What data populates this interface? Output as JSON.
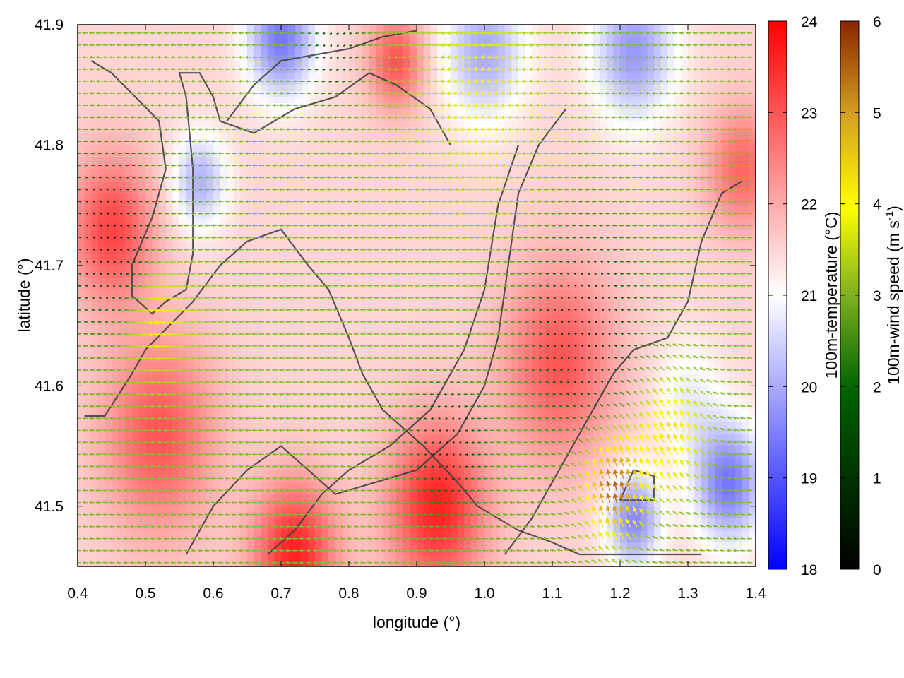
{
  "chart_data": {
    "type": "heatmap",
    "title": "",
    "xlabel": "longitude (°)",
    "ylabel": "latitude (°)",
    "xlim": [
      0.4,
      1.4
    ],
    "ylim": [
      41.45,
      41.9
    ],
    "xticks": [
      0.4,
      0.5,
      0.6,
      0.7,
      0.8,
      0.9,
      1.0,
      1.1,
      1.2,
      1.3,
      1.4
    ],
    "xtick_labels": [
      "0.4",
      "0.5",
      "0.6",
      "0.7",
      "0.8",
      "0.9",
      "1.0",
      "1.1",
      "1.2",
      "1.3",
      "1.4"
    ],
    "yticks": [
      41.5,
      41.6,
      41.7,
      41.8,
      41.9
    ],
    "ytick_labels": [
      "41.5",
      "41.6",
      "41.7",
      "41.8",
      "41.9"
    ],
    "grid": false,
    "temperature_colorbar": {
      "label": "100m-temperature (°C)",
      "range": [
        18,
        24
      ],
      "ticks": [
        18,
        19,
        20,
        21,
        22,
        23,
        24
      ],
      "tick_labels": [
        "18",
        "19",
        "20",
        "21",
        "22",
        "23",
        "24"
      ],
      "colors": [
        "#0000ff",
        "#ffffff",
        "#ff0000"
      ]
    },
    "wind_colorbar": {
      "label": "100m-wind speed (m s-1)",
      "label_main": "100m-wind speed (m s",
      "label_sup": "-1",
      "label_end": ")",
      "range": [
        0,
        6
      ],
      "ticks": [
        0,
        1,
        2,
        3,
        4,
        5,
        6
      ],
      "tick_labels": [
        "0",
        "1",
        "2",
        "3",
        "4",
        "5",
        "6"
      ],
      "colors": [
        "#000000",
        "#006400",
        "#9acd32",
        "#ffff00",
        "#daa520",
        "#8b2500"
      ]
    },
    "temperature_field": {
      "background": 21.5,
      "features": [
        {
          "lon": 0.45,
          "lat": 41.73,
          "value": 23.2,
          "spread": 0.06
        },
        {
          "lon": 0.52,
          "lat": 41.56,
          "value": 23.0,
          "spread": 0.08
        },
        {
          "lon": 0.72,
          "lat": 41.46,
          "value": 23.6,
          "spread": 0.06
        },
        {
          "lon": 0.93,
          "lat": 41.5,
          "value": 23.6,
          "spread": 0.07
        },
        {
          "lon": 1.11,
          "lat": 41.62,
          "value": 23.0,
          "spread": 0.08
        },
        {
          "lon": 0.87,
          "lat": 41.87,
          "value": 23.0,
          "spread": 0.04
        },
        {
          "lon": 1.38,
          "lat": 41.78,
          "value": 22.8,
          "spread": 0.05
        },
        {
          "lon": 0.58,
          "lat": 41.77,
          "value": 20.1,
          "spread": 0.04
        },
        {
          "lon": 0.7,
          "lat": 41.89,
          "value": 19.4,
          "spread": 0.05
        },
        {
          "lon": 1.0,
          "lat": 41.88,
          "value": 20.0,
          "spread": 0.06
        },
        {
          "lon": 1.22,
          "lat": 41.88,
          "value": 19.8,
          "spread": 0.06
        },
        {
          "lon": 1.36,
          "lat": 41.52,
          "value": 19.4,
          "spread": 0.05
        },
        {
          "lon": 1.22,
          "lat": 41.49,
          "value": 19.6,
          "spread": 0.04
        },
        {
          "lon": 1.3,
          "lat": 41.59,
          "value": 20.8,
          "spread": 0.05
        }
      ]
    },
    "wind_field": {
      "background": {
        "u": -2.2,
        "v": 0.1
      },
      "features": [
        {
          "lon": 0.45,
          "lat": 41.72,
          "u": 2.2,
          "v": 0.0,
          "spread": 0.07
        },
        {
          "lon": 0.52,
          "lat": 41.66,
          "u": -1.5,
          "v": -0.5,
          "spread": 0.05
        },
        {
          "lon": 1.0,
          "lat": 41.84,
          "u": -1.2,
          "v": 0.0,
          "spread": 0.09
        },
        {
          "lon": 1.15,
          "lat": 41.65,
          "u": 2.0,
          "v": 0.0,
          "spread": 0.08
        },
        {
          "lon": 1.19,
          "lat": 41.51,
          "u": 0.8,
          "v": 5.0,
          "spread": 0.05
        },
        {
          "lon": 1.28,
          "lat": 41.56,
          "u": 0.5,
          "v": 3.5,
          "spread": 0.06
        },
        {
          "lon": 0.95,
          "lat": 41.55,
          "u": 1.8,
          "v": -0.3,
          "spread": 0.05
        },
        {
          "lon": 0.78,
          "lat": 41.88,
          "u": 1.5,
          "v": -0.5,
          "spread": 0.04
        }
      ]
    },
    "contours": [
      [
        [
          0.42,
          41.87
        ],
        [
          0.45,
          41.86
        ],
        [
          0.52,
          41.82
        ],
        [
          0.53,
          41.78
        ],
        [
          0.51,
          41.74
        ],
        [
          0.48,
          41.7
        ],
        [
          0.48,
          41.675
        ],
        [
          0.51,
          41.66
        ],
        [
          0.53,
          41.67
        ],
        [
          0.56,
          41.68
        ],
        [
          0.57,
          41.71
        ],
        [
          0.57,
          41.78
        ],
        [
          0.56,
          41.84
        ],
        [
          0.55,
          41.86
        ],
        [
          0.58,
          41.86
        ],
        [
          0.6,
          41.84
        ],
        [
          0.61,
          41.82
        ],
        [
          0.66,
          41.81
        ],
        [
          0.72,
          41.83
        ],
        [
          0.78,
          41.84
        ],
        [
          0.83,
          41.86
        ],
        [
          0.87,
          41.85
        ],
        [
          0.92,
          41.83
        ],
        [
          0.95,
          41.8
        ]
      ],
      [
        [
          0.41,
          41.575
        ],
        [
          0.44,
          41.575
        ],
        [
          0.48,
          41.61
        ],
        [
          0.5,
          41.63
        ],
        [
          0.57,
          41.67
        ],
        [
          0.61,
          41.7
        ],
        [
          0.65,
          41.72
        ],
        [
          0.7,
          41.73
        ],
        [
          0.74,
          41.7
        ],
        [
          0.77,
          41.68
        ],
        [
          0.8,
          41.64
        ],
        [
          0.82,
          41.61
        ],
        [
          0.85,
          41.58
        ],
        [
          0.91,
          41.55
        ],
        [
          0.96,
          41.52
        ],
        [
          0.99,
          41.5
        ],
        [
          1.05,
          41.48
        ],
        [
          1.1,
          41.47
        ],
        [
          1.14,
          41.46
        ],
        [
          1.2,
          41.46
        ],
        [
          1.26,
          41.46
        ],
        [
          1.32,
          41.46
        ]
      ],
      [
        [
          0.56,
          41.46
        ],
        [
          0.6,
          41.5
        ],
        [
          0.65,
          41.53
        ],
        [
          0.7,
          41.55
        ],
        [
          0.74,
          41.53
        ],
        [
          0.78,
          41.51
        ],
        [
          0.84,
          41.52
        ],
        [
          0.9,
          41.53
        ],
        [
          0.96,
          41.56
        ],
        [
          1.0,
          41.6
        ],
        [
          1.02,
          41.64
        ],
        [
          1.03,
          41.68
        ],
        [
          1.04,
          41.72
        ],
        [
          1.05,
          41.76
        ],
        [
          1.08,
          41.8
        ],
        [
          1.12,
          41.83
        ]
      ],
      [
        [
          0.68,
          41.46
        ],
        [
          0.72,
          41.48
        ],
        [
          0.76,
          41.51
        ],
        [
          0.8,
          41.53
        ],
        [
          0.86,
          41.55
        ],
        [
          0.92,
          41.58
        ],
        [
          0.97,
          41.63
        ],
        [
          1.0,
          41.68
        ],
        [
          1.02,
          41.75
        ],
        [
          1.05,
          41.8
        ]
      ],
      [
        [
          1.03,
          41.46
        ],
        [
          1.07,
          41.49
        ],
        [
          1.12,
          41.54
        ],
        [
          1.16,
          41.58
        ],
        [
          1.19,
          41.61
        ],
        [
          1.22,
          41.63
        ],
        [
          1.27,
          41.64
        ],
        [
          1.3,
          41.67
        ],
        [
          1.32,
          41.72
        ],
        [
          1.35,
          41.76
        ],
        [
          1.38,
          41.77
        ]
      ],
      [
        [
          1.2,
          41.505
        ],
        [
          1.25,
          41.505
        ],
        [
          1.25,
          41.525
        ],
        [
          1.22,
          41.53
        ],
        [
          1.2,
          41.505
        ]
      ],
      [
        [
          0.62,
          41.82
        ],
        [
          0.66,
          41.85
        ],
        [
          0.7,
          41.87
        ],
        [
          0.75,
          41.875
        ],
        [
          0.8,
          41.88
        ],
        [
          0.85,
          41.89
        ],
        [
          0.9,
          41.895
        ]
      ]
    ]
  }
}
